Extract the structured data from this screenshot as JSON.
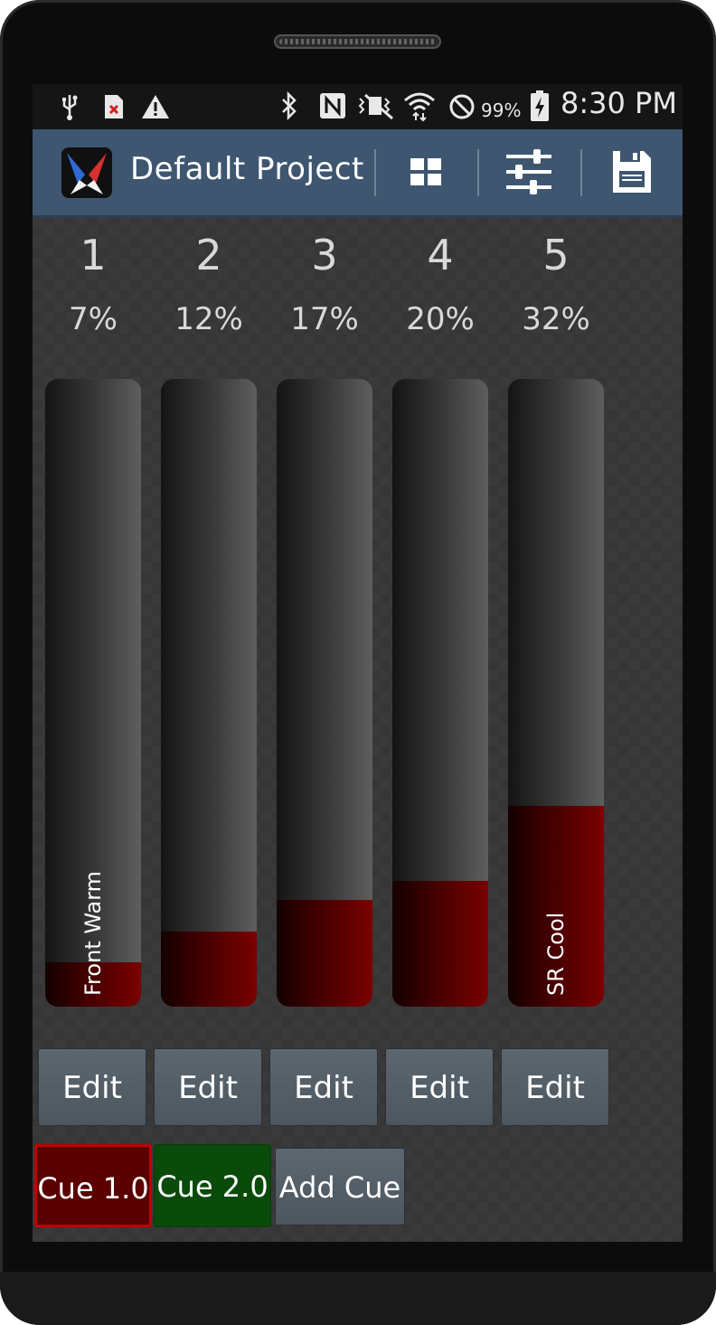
{
  "status_bar": {
    "battery_percent": "99%",
    "time": "8:30 PM"
  },
  "action_bar": {
    "title": "Default Project",
    "colors": {
      "background": "#3e566f"
    }
  },
  "channels": [
    {
      "number": "1",
      "percent_label": "7%",
      "level": 0.07,
      "label": "Front Warm",
      "edit_label": "Edit"
    },
    {
      "number": "2",
      "percent_label": "12%",
      "level": 0.12,
      "label": "",
      "edit_label": "Edit"
    },
    {
      "number": "3",
      "percent_label": "17%",
      "level": 0.17,
      "label": "",
      "edit_label": "Edit"
    },
    {
      "number": "4",
      "percent_label": "20%",
      "level": 0.2,
      "label": "",
      "edit_label": "Edit"
    },
    {
      "number": "5",
      "percent_label": "32%",
      "level": 0.32,
      "label": "SR Cool",
      "edit_label": "Edit"
    }
  ],
  "cues": [
    {
      "label": "Cue 1.0",
      "color": "#5a0000",
      "border": "#c00000",
      "active": true
    },
    {
      "label": "Cue 2.0",
      "color": "#0a4a0a",
      "border": "#0a4a0a",
      "active": false
    }
  ],
  "add_cue_label": "Add Cue",
  "icons": {
    "status": [
      "usb-icon",
      "file-error-icon",
      "warning-icon",
      "bluetooth-icon",
      "nfc-icon",
      "vibrate-icon",
      "wifi-icon",
      "no-sign-icon",
      "battery-charging-icon"
    ],
    "action": [
      "app-logo-icon",
      "grid-icon",
      "sliders-icon",
      "save-icon"
    ]
  },
  "colors": {
    "fader_fill": "#7a0000",
    "fader_track": "#5e5e5e",
    "edit_button": "#55606a"
  }
}
